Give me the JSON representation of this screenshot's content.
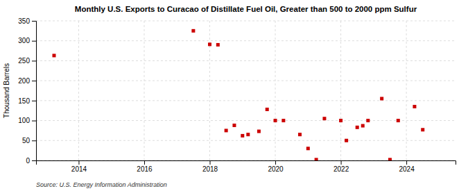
{
  "chart_data": {
    "type": "scatter",
    "title": "Monthly U.S. Exports to Curacao of Distillate Fuel Oil, Greater than 500 to 2000 ppm Sulfur",
    "ylabel": "Thousand Barrels",
    "source": "Source: U.S. Energy Information Administration",
    "x": [
      2013.25,
      2017.5,
      2018.0,
      2018.25,
      2018.5,
      2018.75,
      2019.0,
      2019.17,
      2019.5,
      2019.75,
      2020.0,
      2020.25,
      2020.75,
      2021.0,
      2021.25,
      2021.5,
      2022.0,
      2022.17,
      2022.5,
      2022.67,
      2022.83,
      2023.25,
      2023.5,
      2023.75,
      2024.25,
      2024.5
    ],
    "values": [
      263,
      325,
      291,
      290,
      75,
      88,
      62,
      65,
      73,
      128,
      100,
      100,
      65,
      30,
      2,
      105,
      100,
      50,
      83,
      87,
      100,
      155,
      2,
      100,
      135,
      77
    ],
    "color": "#cc0000",
    "marker": "square",
    "xlim": [
      2012.7,
      2025.5
    ],
    "xticks": [
      2014,
      2016,
      2018,
      2020,
      2022,
      2024
    ],
    "ylim": [
      0,
      350
    ],
    "yticks": [
      0,
      50,
      100,
      150,
      200,
      250,
      300,
      350
    ],
    "grid": true
  }
}
